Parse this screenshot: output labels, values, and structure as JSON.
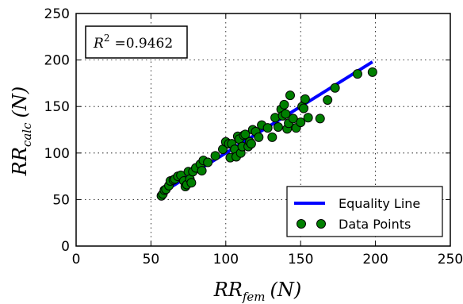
{
  "chart_data": {
    "type": "scatter",
    "title": "",
    "xlabel": {
      "base": "RR",
      "sub": "fem",
      "unit": "(N)"
    },
    "ylabel": {
      "base": "RR",
      "sub": "calc",
      "unit": "(N)"
    },
    "xlim": [
      0,
      250
    ],
    "ylim": [
      0,
      250
    ],
    "xticks": [
      0,
      50,
      100,
      150,
      200,
      250
    ],
    "yticks": [
      0,
      50,
      100,
      150,
      200,
      250
    ],
    "grid": true,
    "grid_style": "dotted",
    "annotation": {
      "label": "R",
      "sup": "2",
      "value": "=0.9462",
      "position": "top-left"
    },
    "legend": {
      "position": "bottom-right"
    },
    "series": [
      {
        "name": "Equality Line",
        "kind": "line",
        "color": "#0000ff",
        "x": [
          57,
          198
        ],
        "y": [
          57,
          198
        ]
      },
      {
        "name": "Data Points",
        "kind": "scatter",
        "color": "#008000",
        "x": [
          57,
          58,
          59,
          60,
          62,
          63,
          65,
          66,
          68,
          70,
          72,
          73,
          74,
          75,
          76,
          77,
          78,
          80,
          83,
          84,
          85,
          88,
          93,
          98,
          100,
          102,
          103,
          104,
          106,
          107,
          108,
          109,
          110,
          111,
          112,
          113,
          115,
          116,
          117,
          118,
          120,
          122,
          124,
          128,
          131,
          133,
          135,
          137,
          138,
          139,
          140,
          141,
          142,
          143,
          145,
          147,
          150,
          151,
          152,
          153,
          155,
          163,
          168,
          173,
          188,
          198
        ],
        "y": [
          54,
          56,
          60,
          61,
          65,
          70,
          71,
          72,
          75,
          76,
          70,
          64,
          66,
          80,
          72,
          68,
          80,
          84,
          88,
          81,
          92,
          90,
          97,
          104,
          112,
          110,
          95,
          110,
          104,
          96,
          118,
          115,
          100,
          107,
          119,
          120,
          107,
          112,
          110,
          125,
          123,
          117,
          130,
          127,
          117,
          138,
          128,
          147,
          140,
          152,
          142,
          126,
          132,
          162,
          137,
          127,
          133,
          150,
          148,
          158,
          138,
          137,
          157,
          170,
          185,
          187
        ]
      }
    ]
  }
}
